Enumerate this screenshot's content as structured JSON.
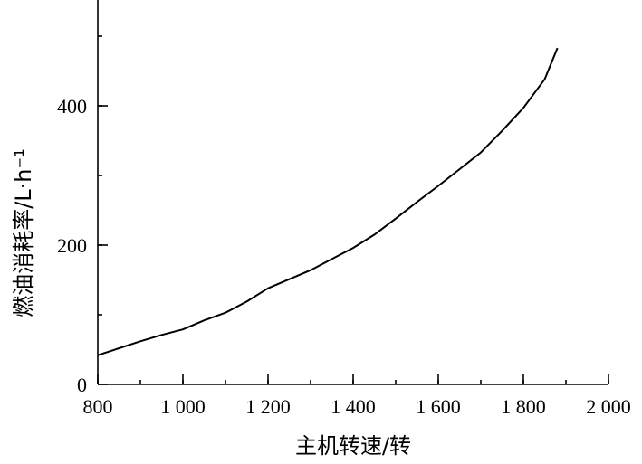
{
  "chart_data": {
    "type": "line",
    "title": "",
    "xlabel": "主机转速/转",
    "ylabel": "燃油消耗率/L·h⁻¹",
    "xlim": [
      800,
      2000
    ],
    "ylim": [
      0,
      550
    ],
    "x_ticks": [
      {
        "value": 800,
        "label": "800"
      },
      {
        "value": 1000,
        "label": "1 000"
      },
      {
        "value": 1200,
        "label": "1 200"
      },
      {
        "value": 1400,
        "label": "1 400"
      },
      {
        "value": 1600,
        "label": "1 600"
      },
      {
        "value": 1800,
        "label": "1 800"
      },
      {
        "value": 2000,
        "label": "2 000"
      }
    ],
    "y_ticks": [
      {
        "value": 0,
        "label": "0"
      },
      {
        "value": 200,
        "label": "200"
      },
      {
        "value": 400,
        "label": "400"
      }
    ],
    "x_minor_step": 100,
    "y_minor_step": 100,
    "series": [
      {
        "name": "",
        "x": [
          800,
          850,
          900,
          950,
          1000,
          1050,
          1100,
          1150,
          1200,
          1250,
          1300,
          1350,
          1400,
          1450,
          1500,
          1550,
          1600,
          1650,
          1700,
          1750,
          1800,
          1850,
          1880
        ],
        "y": [
          42,
          52,
          62,
          71,
          79,
          92,
          103,
          119,
          138,
          151,
          164,
          180,
          196,
          215,
          238,
          262,
          285,
          309,
          333,
          364,
          397,
          438,
          483
        ]
      }
    ],
    "grid": false,
    "legend": "none"
  }
}
